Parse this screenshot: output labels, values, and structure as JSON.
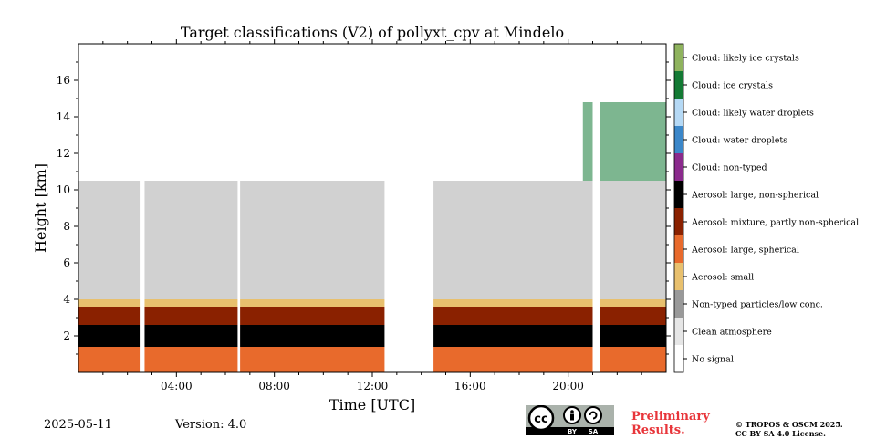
{
  "footer": {
    "date": "2025-05-11",
    "version": "Version: 4.0",
    "preliminary_line1": "Preliminary",
    "preliminary_line2": "Results.",
    "copyright_line1": "© TROPOS & OSCM 2025.",
    "copyright_line2": "CC BY SA 4.0 License.",
    "license_badge": {
      "text": "cc",
      "by": "BY",
      "sa": "SA"
    }
  },
  "chart_data": {
    "type": "heatmap",
    "title": "Target classifications (V2) of pollyxt_cpv at Mindelo",
    "xlabel": "Time [UTC]",
    "ylabel": "Height [km]",
    "xlim_hours": [
      0,
      24
    ],
    "ylim_km": [
      0,
      18
    ],
    "x_ticks": [
      {
        "value": 4,
        "label": "04:00"
      },
      {
        "value": 8,
        "label": "08:00"
      },
      {
        "value": 12,
        "label": "12:00"
      },
      {
        "value": 16,
        "label": "16:00"
      },
      {
        "value": 20,
        "label": "20:00"
      }
    ],
    "y_ticks": [
      {
        "value": 2,
        "label": "2"
      },
      {
        "value": 4,
        "label": "4"
      },
      {
        "value": 6,
        "label": "6"
      },
      {
        "value": 8,
        "label": "8"
      },
      {
        "value": 10,
        "label": "10"
      },
      {
        "value": 12,
        "label": "12"
      },
      {
        "value": 14,
        "label": "14"
      },
      {
        "value": 16,
        "label": "16"
      }
    ],
    "classes": [
      {
        "label": "Cloud: likely ice crystals",
        "color": "#8fb35e"
      },
      {
        "label": "Cloud: ice crystals",
        "color": "#137a34"
      },
      {
        "label": "Cloud: likely water droplets",
        "color": "#b5d9f5"
      },
      {
        "label": "Cloud: water droplets",
        "color": "#3b87c9"
      },
      {
        "label": "Cloud: non-typed",
        "color": "#8a2a8c"
      },
      {
        "label": "Aerosol: large, non-spherical",
        "color": "#000000"
      },
      {
        "label": "Aerosol: mixture, partly non-spherical",
        "color": "#8a2100"
      },
      {
        "label": "Aerosol: large, spherical",
        "color": "#e86a2c"
      },
      {
        "label": "Aerosol: small",
        "color": "#e8c06e"
      },
      {
        "label": "Non-typed particles/low conc.",
        "color": "#999999"
      },
      {
        "label": "Clean atmosphere",
        "color": "#e6e6e6"
      },
      {
        "label": "No signal",
        "color": "#ffffff"
      }
    ],
    "no_data_gaps_hours": [
      [
        2.5,
        2.7
      ],
      [
        6.5,
        6.6
      ],
      [
        12.5,
        14.5
      ],
      [
        21.0,
        21.3
      ]
    ],
    "layers": [
      {
        "class": "Aerosol: large, spherical",
        "from_h": 0,
        "to_h": 24,
        "bottom_km": 0,
        "top_km": 1.4
      },
      {
        "class": "Aerosol: large, non-spherical",
        "from_h": 0,
        "to_h": 24,
        "bottom_km": 1.4,
        "top_km": 2.6
      },
      {
        "class": "Aerosol: mixture, partly non-spherical",
        "from_h": 0,
        "to_h": 24,
        "bottom_km": 1.4,
        "top_km": 3.6
      },
      {
        "class": "Aerosol: small",
        "from_h": 0,
        "to_h": 24,
        "bottom_km": 3.3,
        "top_km": 4.0
      },
      {
        "class": "Non-typed particles/low conc.",
        "from_h": 0,
        "to_h": 24,
        "bottom_km": 3.6,
        "top_km": 10.5
      },
      {
        "class": "Cloud: ice crystals",
        "from_h": 20.6,
        "to_h": 24,
        "bottom_km": 10.5,
        "top_km": 14.8
      }
    ]
  }
}
